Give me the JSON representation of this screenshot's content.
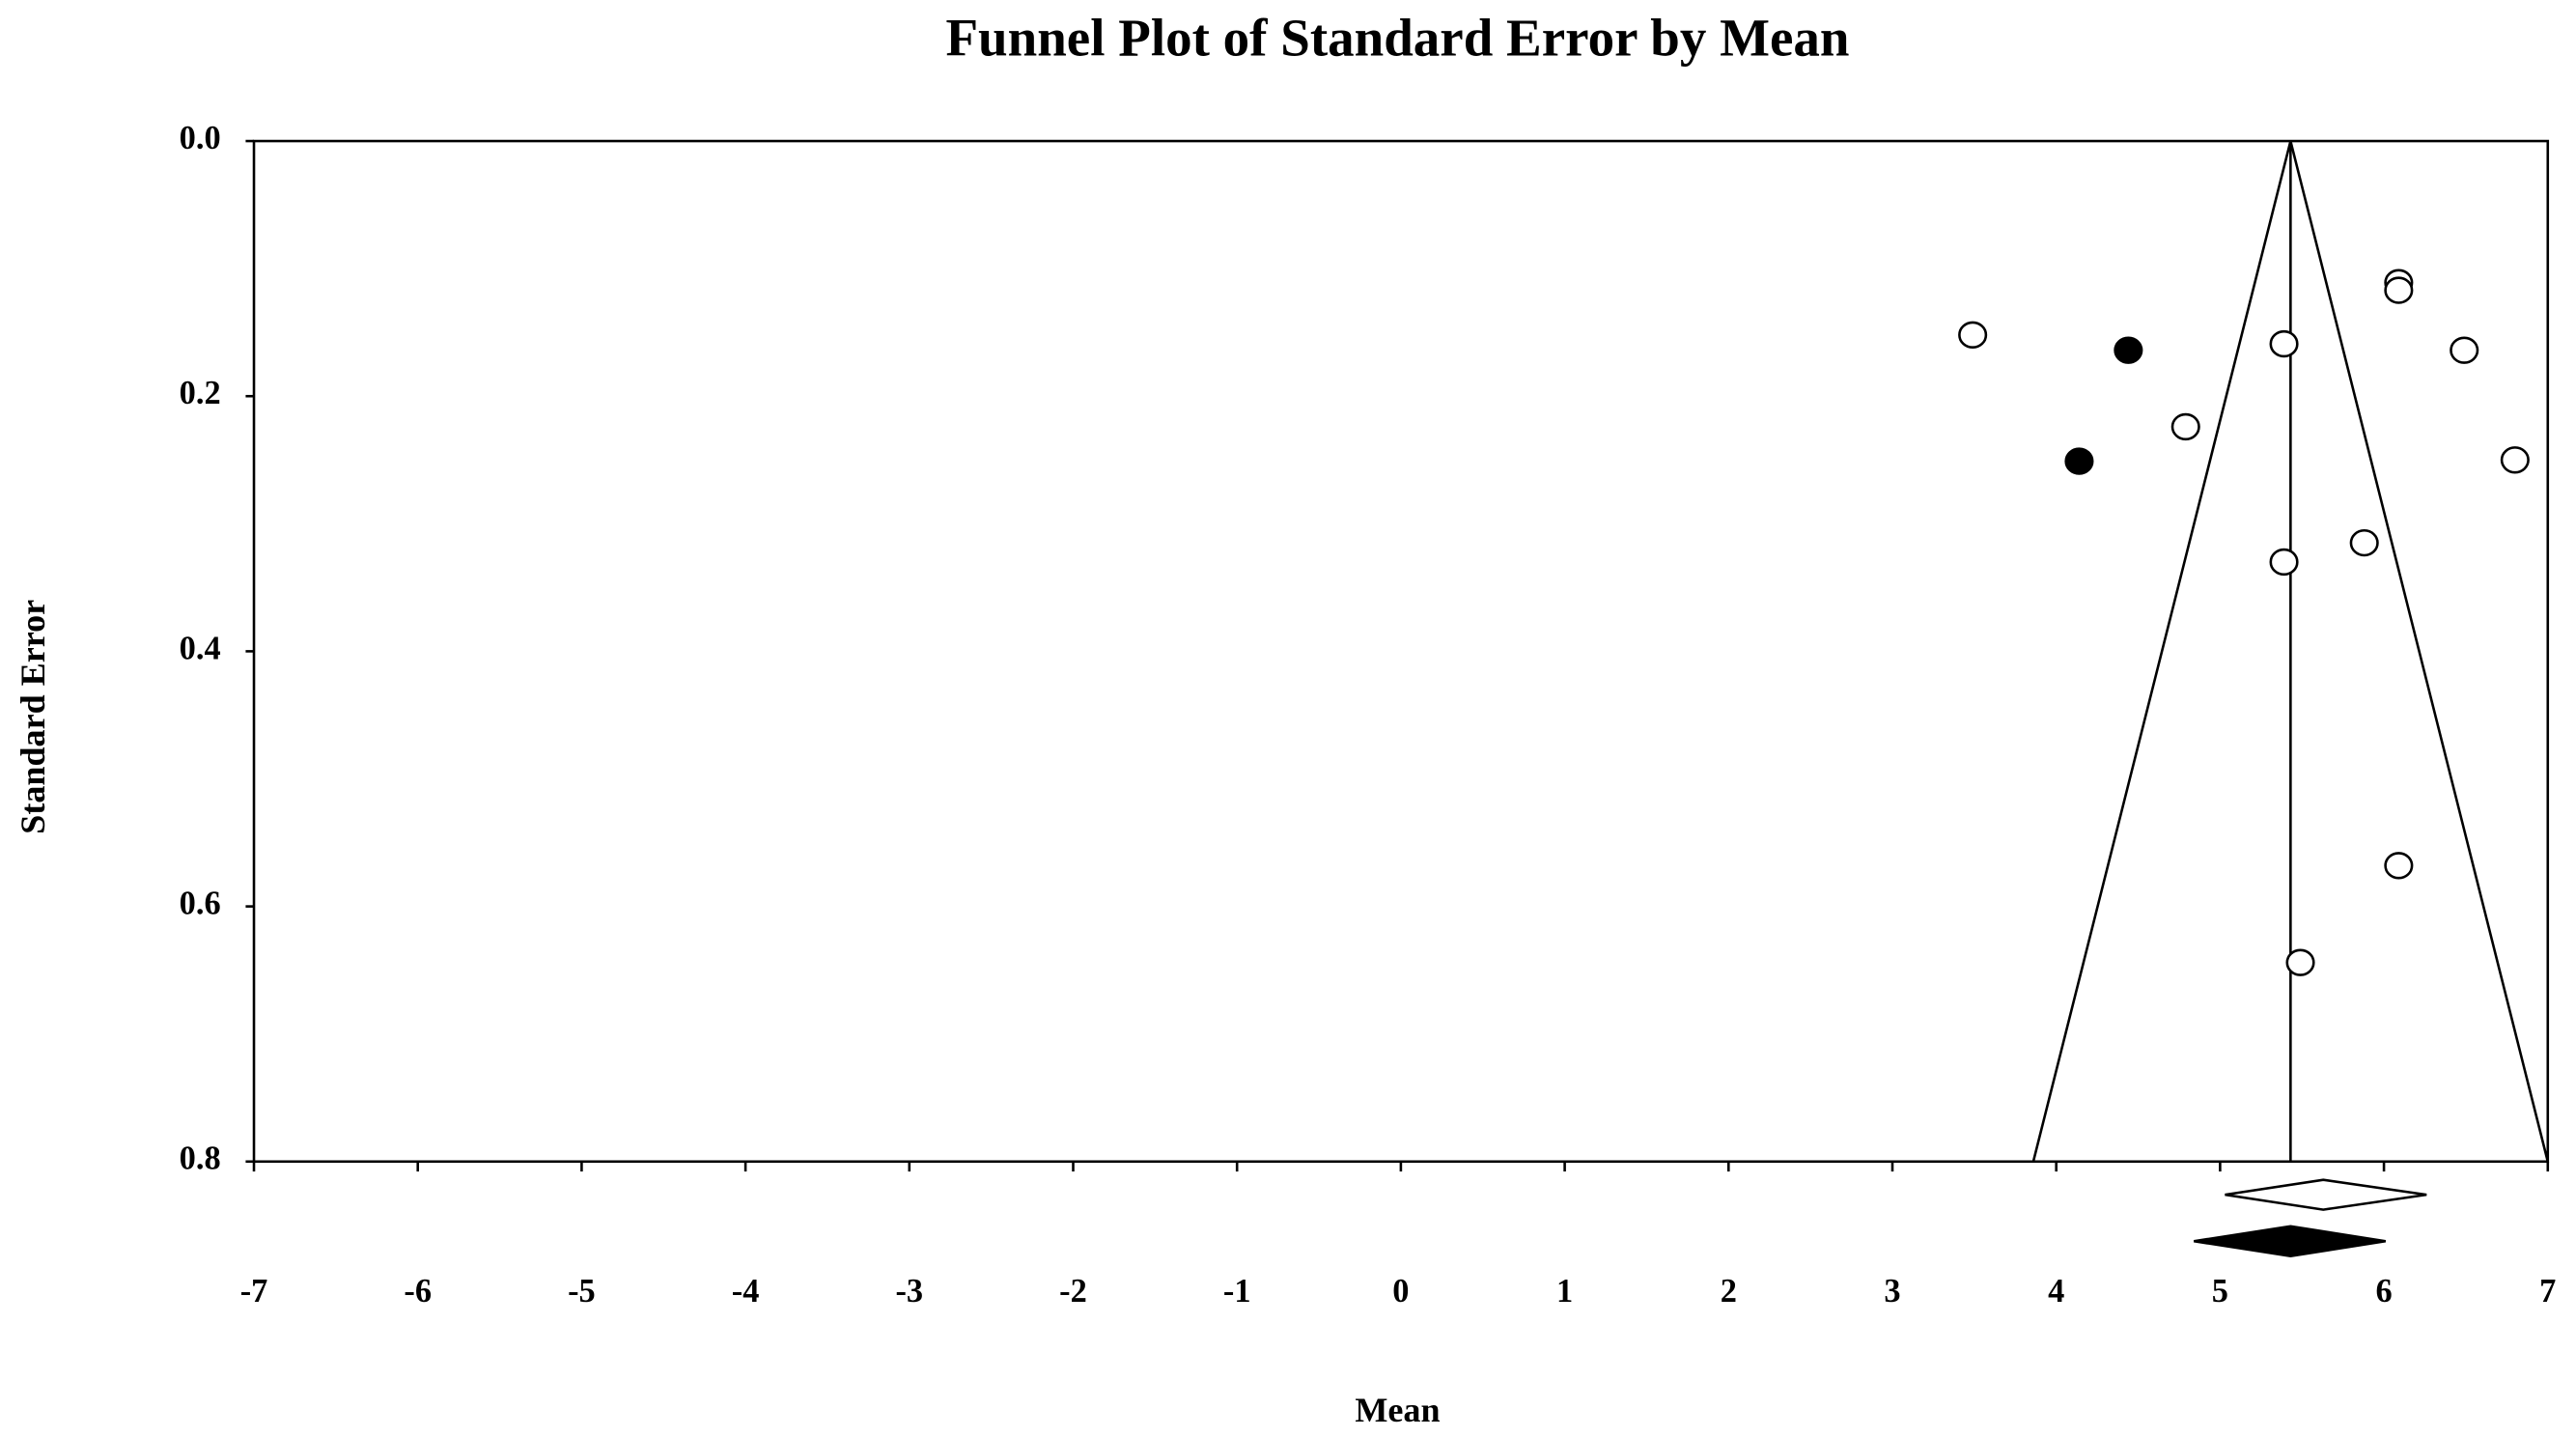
{
  "chart_data": {
    "type": "funnel",
    "title": "Funnel Plot of Standard Error by Mean",
    "x_label": "Mean",
    "y_label": "Standard Error",
    "xlim": [
      -7,
      7
    ],
    "xticks": [
      -7,
      -6,
      -5,
      -4,
      -3,
      -2,
      -1,
      0,
      1,
      2,
      3,
      4,
      5,
      6,
      7
    ],
    "ylim": [
      0,
      0.8
    ],
    "y_inverted": true,
    "yticks": [
      {
        "value": 0,
        "label": "0.0"
      },
      0.2,
      0.4,
      0.6,
      0.8
    ],
    "series": [
      {
        "marker": "open",
        "color": "#000000",
        "x": [
          3.49,
          6.09,
          6.09,
          5.39,
          6.49,
          4.79,
          6.8,
          5.88,
          5.39,
          6.09,
          5.49
        ],
        "values": [
          0.152,
          0.111,
          0.117,
          0.159,
          0.164,
          0.224,
          0.25,
          0.315,
          0.33,
          0.568,
          0.644
        ]
      },
      {
        "marker": "filled",
        "color": "#000000",
        "x": [
          4.44,
          4.14
        ],
        "values": [
          0.164,
          0.251
        ]
      }
    ],
    "funnel": {
      "mean": 5.43,
      "lower_bottom": 3.86,
      "upper_bottom": 7.0
    },
    "summary": [
      {
        "marker": "open",
        "low": 5.03,
        "center": 5.63,
        "high": 6.26
      },
      {
        "marker": "filled",
        "low": 4.84,
        "center": 5.43,
        "high": 6.01
      }
    ]
  }
}
